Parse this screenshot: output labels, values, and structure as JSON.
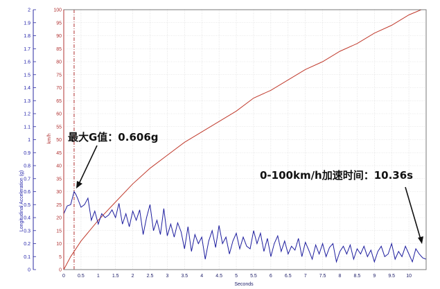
{
  "chart_data": {
    "type": "line",
    "x_label": "Seconds",
    "y_left_label": "Longitudinal Acceleration (g)",
    "y_right_label": "km/h",
    "x_range": [
      0,
      10.5
    ],
    "y_left_range": [
      0,
      2
    ],
    "y_right_range": [
      0,
      100
    ],
    "x_ticks": [
      "0",
      "0.5",
      "1",
      "1.5",
      "2",
      "2.5",
      "3",
      "3.5",
      "4",
      "4.5",
      "5",
      "5.5",
      "6",
      "6.5",
      "7",
      "7.5",
      "8",
      "8.5",
      "9",
      "9.5",
      "10"
    ],
    "y_left_ticks": [
      "0",
      "0.1",
      "0.2",
      "0.3",
      "0.4",
      "0.5",
      "0.6",
      "0.7",
      "0.8",
      "0.9",
      "1",
      "1.1",
      "1.2",
      "1.3",
      "1.4",
      "1.5",
      "1.6",
      "1.7",
      "1.8",
      "1.9",
      "2"
    ],
    "y_right_ticks": [
      "0",
      "5",
      "10",
      "15",
      "20",
      "25",
      "30",
      "35",
      "40",
      "45",
      "50",
      "55",
      "60",
      "65",
      "70",
      "75",
      "80",
      "85",
      "90",
      "95",
      "100"
    ],
    "grid": true,
    "marker_x": 0.3,
    "series": [
      {
        "axis": "left",
        "color": "#1c1c9e",
        "x": [
          0,
          0.1,
          0.2,
          0.3,
          0.35,
          0.4,
          0.5,
          0.6,
          0.7,
          0.8,
          0.9,
          1.0,
          1.1,
          1.2,
          1.3,
          1.4,
          1.5,
          1.6,
          1.7,
          1.8,
          1.9,
          2.0,
          2.1,
          2.2,
          2.3,
          2.4,
          2.5,
          2.6,
          2.7,
          2.8,
          2.9,
          3.0,
          3.1,
          3.2,
          3.3,
          3.4,
          3.5,
          3.6,
          3.7,
          3.8,
          3.9,
          4.0,
          4.1,
          4.2,
          4.3,
          4.4,
          4.5,
          4.6,
          4.7,
          4.8,
          4.9,
          5.0,
          5.1,
          5.2,
          5.3,
          5.4,
          5.5,
          5.6,
          5.7,
          5.8,
          5.9,
          6.0,
          6.1,
          6.2,
          6.3,
          6.4,
          6.5,
          6.6,
          6.7,
          6.8,
          6.9,
          7.0,
          7.1,
          7.2,
          7.3,
          7.4,
          7.5,
          7.6,
          7.7,
          7.8,
          7.9,
          8.0,
          8.1,
          8.2,
          8.3,
          8.4,
          8.5,
          8.6,
          8.7,
          8.8,
          8.9,
          9.0,
          9.1,
          9.2,
          9.3,
          9.4,
          9.5,
          9.6,
          9.7,
          9.8,
          9.9,
          10.0,
          10.1,
          10.2,
          10.3,
          10.4,
          10.5
        ],
        "values": [
          0.43,
          0.49,
          0.5,
          0.6,
          0.58,
          0.55,
          0.48,
          0.5,
          0.55,
          0.38,
          0.45,
          0.35,
          0.43,
          0.4,
          0.42,
          0.46,
          0.4,
          0.51,
          0.35,
          0.43,
          0.33,
          0.45,
          0.38,
          0.46,
          0.27,
          0.4,
          0.5,
          0.3,
          0.38,
          0.27,
          0.47,
          0.26,
          0.35,
          0.25,
          0.36,
          0.29,
          0.16,
          0.33,
          0.14,
          0.27,
          0.2,
          0.25,
          0.08,
          0.22,
          0.3,
          0.17,
          0.34,
          0.2,
          0.25,
          0.12,
          0.22,
          0.28,
          0.16,
          0.25,
          0.18,
          0.16,
          0.3,
          0.2,
          0.28,
          0.14,
          0.24,
          0.1,
          0.2,
          0.26,
          0.14,
          0.22,
          0.12,
          0.18,
          0.15,
          0.24,
          0.1,
          0.21,
          0.15,
          0.08,
          0.19,
          0.12,
          0.2,
          0.1,
          0.17,
          0.2,
          0.06,
          0.14,
          0.18,
          0.12,
          0.19,
          0.08,
          0.16,
          0.12,
          0.18,
          0.1,
          0.15,
          0.06,
          0.14,
          0.18,
          0.1,
          0.12,
          0.2,
          0.08,
          0.14,
          0.1,
          0.18,
          0.12,
          0.06,
          0.16,
          0.12,
          0.09,
          0.08
        ]
      },
      {
        "axis": "right",
        "color": "#c0392b",
        "x": [
          0,
          0.2,
          0.5,
          1.0,
          1.5,
          2.0,
          2.5,
          3.0,
          3.5,
          4.0,
          4.5,
          5.0,
          5.5,
          6.0,
          6.5,
          7.0,
          7.5,
          8.0,
          8.5,
          9.0,
          9.5,
          10.0,
          10.36
        ],
        "values": [
          0,
          5,
          11,
          19,
          26,
          33,
          39,
          44,
          49,
          53,
          57,
          61,
          66,
          69,
          73,
          77,
          80,
          84,
          87,
          91,
          94,
          98,
          100
        ]
      }
    ],
    "annotations": [
      {
        "text": "最大G值：0.606g"
      },
      {
        "text": "0-100km/h加速时间：10.36s"
      }
    ]
  }
}
